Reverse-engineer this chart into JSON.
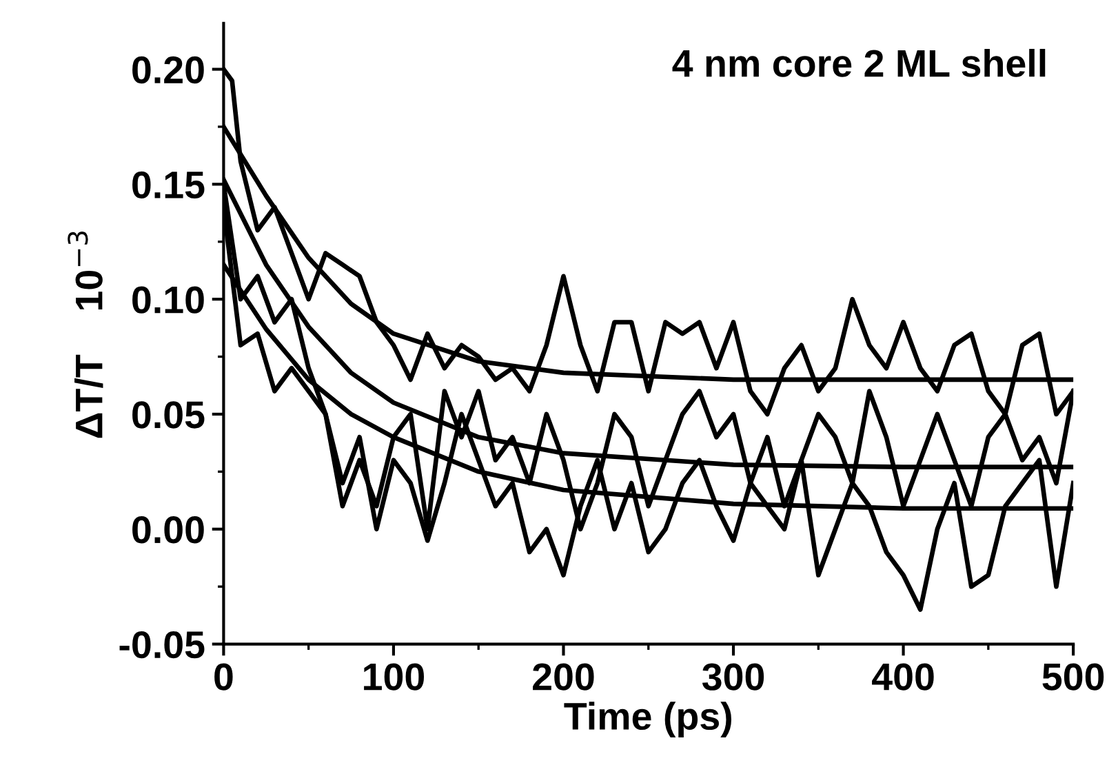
{
  "chart_data": {
    "type": "line",
    "xlabel": "Time (ps)",
    "ylabel": "ΔT/T    10$^{−3}$",
    "annotations": [
      "4 nm core 2 ML shell"
    ],
    "xlim": [
      0,
      500
    ],
    "xticks": [
      0,
      100,
      200,
      300,
      400,
      500
    ],
    "ylim": [
      -0.05,
      0.22
    ],
    "yticks": [
      {
        "value": -0.05,
        "label": "-0.05"
      },
      {
        "value": 0,
        "label": "0.00"
      },
      {
        "value": 0.05,
        "label": "0.05"
      },
      {
        "value": 0.1,
        "label": "0.10"
      },
      {
        "value": 0.15,
        "label": "0.15"
      },
      {
        "value": 0.2,
        "label": "0.20"
      }
    ],
    "grid": false,
    "legend": false,
    "marker": "none",
    "line_style": "solid",
    "series": [
      {
        "color": "#000000",
        "x": [
          0,
          5,
          10,
          20,
          30,
          40,
          50,
          60,
          70,
          80,
          90,
          100,
          110,
          120,
          130,
          140,
          150,
          160,
          170,
          180,
          190,
          200,
          210,
          220,
          230,
          240,
          250,
          260,
          270,
          280,
          290,
          300,
          310,
          320,
          330,
          340,
          350,
          360,
          370,
          380,
          390,
          400,
          410,
          420,
          430,
          440,
          450,
          460,
          470,
          480,
          490,
          500
        ],
        "values": [
          0.2,
          0.195,
          0.16,
          0.13,
          0.14,
          0.12,
          0.1,
          0.12,
          0.115,
          0.11,
          0.09,
          0.08,
          0.065,
          0.085,
          0.07,
          0.08,
          0.075,
          0.065,
          0.07,
          0.06,
          0.08,
          0.11,
          0.08,
          0.06,
          0.09,
          0.09,
          0.06,
          0.09,
          0.085,
          0.09,
          0.07,
          0.09,
          0.06,
          0.05,
          0.07,
          0.08,
          0.06,
          0.07,
          0.1,
          0.08,
          0.07,
          0.09,
          0.07,
          0.06,
          0.08,
          0.085,
          0.06,
          0.05,
          0.08,
          0.085,
          0.05,
          0.06
        ]
      },
      {
        "color": "#000000",
        "x": [
          0,
          10,
          20,
          30,
          40,
          50,
          60,
          70,
          80,
          90,
          100,
          110,
          120,
          130,
          140,
          150,
          160,
          170,
          180,
          190,
          200,
          210,
          220,
          230,
          240,
          250,
          260,
          270,
          280,
          290,
          300,
          310,
          320,
          330,
          340,
          350,
          360,
          370,
          380,
          390,
          400,
          410,
          420,
          430,
          440,
          450,
          460,
          470,
          480,
          490,
          500
        ],
        "values": [
          0.15,
          0.1,
          0.11,
          0.09,
          0.1,
          0.07,
          0.05,
          0.01,
          0.03,
          0.01,
          0.04,
          0.05,
          0.0,
          0.06,
          0.04,
          0.06,
          0.03,
          0.04,
          0.02,
          0.05,
          0.03,
          0.0,
          0.02,
          0.05,
          0.04,
          0.01,
          0.03,
          0.05,
          0.06,
          0.04,
          0.05,
          0.02,
          0.04,
          0.01,
          0.03,
          0.05,
          0.04,
          0.02,
          0.06,
          0.04,
          0.01,
          0.03,
          0.05,
          0.03,
          0.01,
          0.04,
          0.05,
          0.03,
          0.04,
          0.02,
          0.06
        ]
      },
      {
        "color": "#000000",
        "x": [
          0,
          10,
          20,
          30,
          40,
          50,
          60,
          70,
          80,
          90,
          100,
          110,
          120,
          130,
          140,
          150,
          160,
          170,
          180,
          190,
          200,
          210,
          220,
          230,
          240,
          250,
          260,
          270,
          280,
          290,
          300,
          310,
          320,
          330,
          340,
          350,
          360,
          370,
          380,
          390,
          400,
          410,
          420,
          430,
          440,
          450,
          460,
          470,
          480,
          490,
          500
        ],
        "values": [
          0.14,
          0.08,
          0.085,
          0.06,
          0.07,
          0.06,
          0.05,
          0.02,
          0.04,
          0.0,
          0.03,
          0.02,
          -0.005,
          0.02,
          0.05,
          0.03,
          0.01,
          0.02,
          -0.01,
          0.0,
          -0.02,
          0.01,
          0.03,
          0.0,
          0.02,
          -0.01,
          0.0,
          0.02,
          0.03,
          0.01,
          -0.005,
          0.02,
          0.01,
          0.0,
          0.03,
          -0.02,
          0.0,
          0.02,
          0.01,
          -0.01,
          -0.02,
          -0.035,
          0.0,
          0.02,
          -0.025,
          -0.02,
          0.01,
          0.02,
          0.03,
          -0.025,
          0.02
        ]
      },
      {
        "color": "#000000",
        "x": [
          0,
          25,
          50,
          75,
          100,
          150,
          200,
          300,
          400,
          500
        ],
        "values": [
          0.175,
          0.145,
          0.118,
          0.098,
          0.085,
          0.073,
          0.068,
          0.065,
          0.065,
          0.065
        ]
      },
      {
        "color": "#000000",
        "x": [
          0,
          25,
          50,
          75,
          100,
          150,
          200,
          300,
          400,
          500
        ],
        "values": [
          0.152,
          0.115,
          0.088,
          0.068,
          0.055,
          0.04,
          0.033,
          0.028,
          0.027,
          0.027
        ]
      },
      {
        "color": "#000000",
        "x": [
          0,
          25,
          50,
          75,
          100,
          150,
          200,
          300,
          400,
          500
        ],
        "values": [
          0.115,
          0.087,
          0.065,
          0.05,
          0.04,
          0.025,
          0.017,
          0.011,
          0.009,
          0.009
        ]
      }
    ]
  }
}
